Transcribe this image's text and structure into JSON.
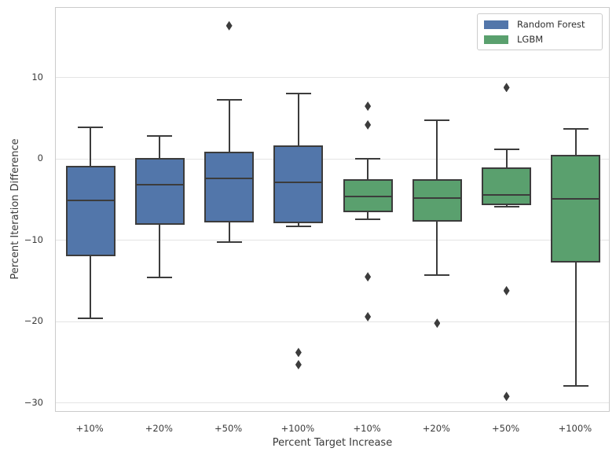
{
  "chart_data": {
    "type": "boxplot",
    "title": "",
    "xlabel": "Percent Target Increase",
    "ylabel": "Percent Iteration Difference",
    "ylim": [
      -31.2,
      18.6
    ],
    "grid": true,
    "legend_position": "upper right",
    "line_color": "#3c3c3c",
    "yticks": [
      {
        "label": "10",
        "value": 10
      },
      {
        "label": "0",
        "value": 0
      },
      {
        "label": "−10",
        "value": -10
      },
      {
        "label": "−20",
        "value": -20
      },
      {
        "label": "−30",
        "value": -30
      }
    ],
    "categories": [
      "+10%",
      "+20%",
      "+50%",
      "+100%",
      "+10%",
      "+20%",
      "+50%",
      "+100%"
    ],
    "legend": [
      {
        "label": "Random Forest",
        "color": "#5276aa"
      },
      {
        "label": "LGBM",
        "color": "#5aa06e"
      }
    ],
    "boxes": [
      {
        "label": "+10%",
        "series": "Random Forest",
        "whislo": -19.6,
        "q1": -12.0,
        "med": -5.1,
        "q3": -0.8,
        "whishi": 3.9,
        "fliers": []
      },
      {
        "label": "+20%",
        "series": "Random Forest",
        "whislo": -14.6,
        "q1": -8.1,
        "med": -3.2,
        "q3": 0.1,
        "whishi": 2.8,
        "fliers": []
      },
      {
        "label": "+50%",
        "series": "Random Forest",
        "whislo": -10.2,
        "q1": -7.8,
        "med": -2.4,
        "q3": 0.9,
        "whishi": 7.3,
        "fliers": [
          16.4
        ]
      },
      {
        "label": "+100%",
        "series": "Random Forest",
        "whislo": -8.3,
        "q1": -7.9,
        "med": -2.9,
        "q3": 1.7,
        "whishi": 8.1,
        "fliers": [
          -23.8,
          -25.3
        ]
      },
      {
        "label": "+10%",
        "series": "LGBM",
        "whislo": -7.4,
        "q1": -6.5,
        "med": -4.6,
        "q3": -2.5,
        "whishi": 0.0,
        "fliers": [
          6.5,
          4.2,
          -14.5,
          -19.4
        ]
      },
      {
        "label": "+20%",
        "series": "LGBM",
        "whislo": -14.3,
        "q1": -7.7,
        "med": -4.8,
        "q3": -2.5,
        "whishi": 4.8,
        "fliers": [
          -20.2
        ]
      },
      {
        "label": "+50%",
        "series": "LGBM",
        "whislo": -5.9,
        "q1": -5.7,
        "med": -4.4,
        "q3": -1.0,
        "whishi": 1.2,
        "fliers": [
          8.8,
          -16.2,
          -29.2
        ]
      },
      {
        "label": "+100%",
        "series": "LGBM",
        "whislo": -27.9,
        "q1": -12.7,
        "med": -4.9,
        "q3": 0.5,
        "whishi": 3.7,
        "fliers": []
      }
    ]
  }
}
